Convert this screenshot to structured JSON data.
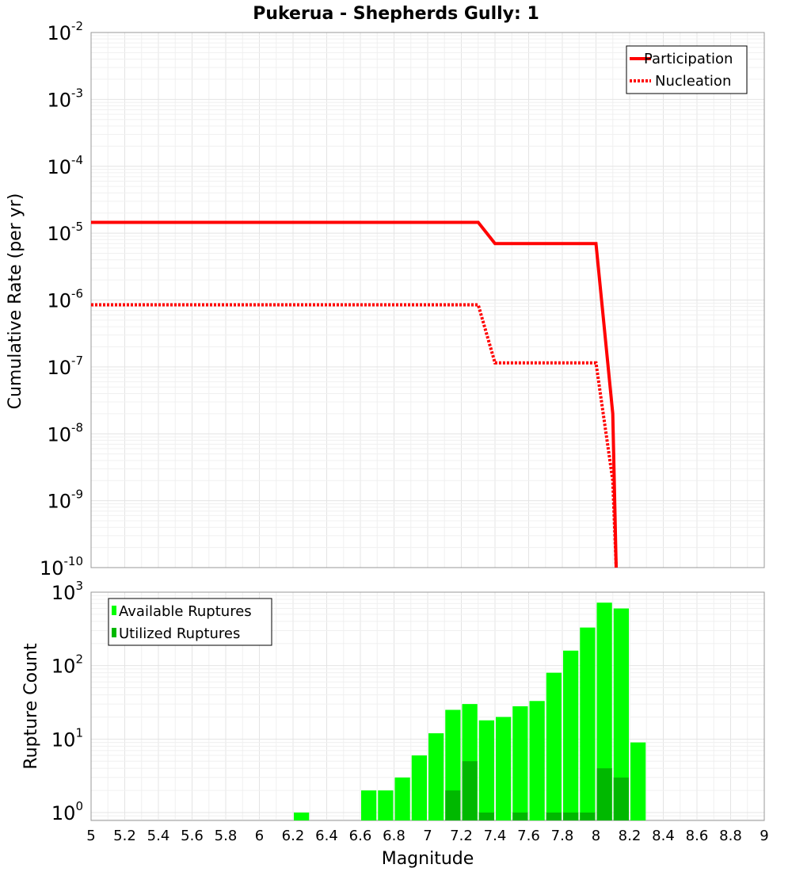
{
  "chart_data": [
    {
      "type": "line",
      "title": "Pukerua - Shepherds Gully: 1",
      "xlabel": "",
      "ylabel": "Cumulative Rate (per yr)",
      "xlim": [
        5,
        9
      ],
      "ylim": [
        1e-10,
        0.01
      ],
      "yscale": "log",
      "y_tick_exponents": [
        -2,
        -3,
        -4,
        -5,
        -6,
        -7,
        -8,
        -9,
        -10
      ],
      "legend_position": "top-right",
      "series": [
        {
          "name": "Participation",
          "style": "solid",
          "color": "#ff0000",
          "x": [
            5.0,
            7.3,
            7.4,
            8.0,
            8.1,
            8.12
          ],
          "y": [
            1.45e-05,
            1.45e-05,
            7e-06,
            7e-06,
            2e-08,
            1e-10
          ]
        },
        {
          "name": "Nucleation",
          "style": "dotted",
          "color": "#ff0000",
          "x": [
            5.0,
            7.3,
            7.4,
            8.0,
            8.1,
            8.12
          ],
          "y": [
            8.5e-07,
            8.5e-07,
            1.15e-07,
            1.15e-07,
            2e-09,
            1e-10
          ]
        }
      ]
    },
    {
      "type": "bar",
      "title": "",
      "xlabel": "Magnitude",
      "ylabel": "Rupture Count",
      "xlim": [
        5,
        9
      ],
      "ylim": [
        0.78,
        1000
      ],
      "yscale": "log",
      "y_tick_exponents": [
        3,
        2,
        1,
        0
      ],
      "x_ticks": [
        "5",
        "5.2",
        "5.4",
        "5.6",
        "5.8",
        "6",
        "6.2",
        "6.4",
        "6.6",
        "6.8",
        "7",
        "7.2",
        "7.4",
        "7.6",
        "7.8",
        "8",
        "8.2",
        "8.4",
        "8.6",
        "8.8",
        "9"
      ],
      "bin_width": 0.1,
      "legend_position": "top-left",
      "categories": [
        6.25,
        6.65,
        6.75,
        6.85,
        6.95,
        7.05,
        7.15,
        7.25,
        7.35,
        7.45,
        7.55,
        7.65,
        7.75,
        7.85,
        7.95,
        8.05,
        8.15,
        8.25
      ],
      "series": [
        {
          "name": "Available Ruptures",
          "color": "#00ff00",
          "values": [
            1,
            2,
            2,
            3,
            6,
            12,
            25,
            30,
            18,
            20,
            28,
            33,
            80,
            160,
            330,
            720,
            600,
            9
          ]
        },
        {
          "name": "Utilized Ruptures",
          "color": "#00b800",
          "values": [
            0,
            0,
            0,
            0,
            0,
            0,
            2,
            5,
            1,
            0,
            1,
            0,
            1,
            1,
            1,
            4,
            3,
            0
          ]
        }
      ]
    }
  ]
}
